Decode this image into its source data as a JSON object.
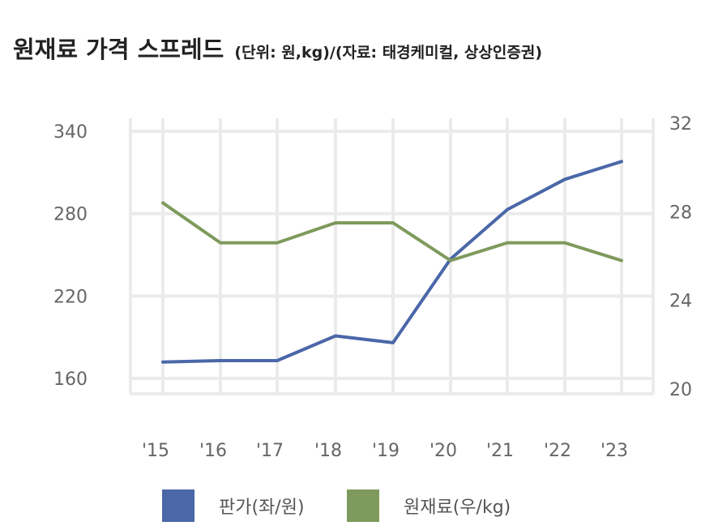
{
  "colors": {
    "price": "#4A67A8",
    "material": "#7E9A5C",
    "grid": "#EBEBEB"
  },
  "chart_data": {
    "type": "line",
    "title": "원재료 가격 스프레드",
    "subtitle": "(단위: 원,kg)/(자료: 태경케미컬, 상상인증권)",
    "categories": [
      "'15",
      "'16",
      "'17",
      "'18",
      "'19",
      "'20",
      "'21",
      "'22",
      "'23"
    ],
    "y_left": {
      "ticks": [
        "340",
        "280",
        "220",
        "160"
      ],
      "range": [
        160,
        340
      ]
    },
    "y_right": {
      "ticks": [
        "32",
        "28",
        "24",
        "20"
      ],
      "range": [
        20,
        32
      ]
    },
    "series": [
      {
        "name": "판가(좌/원)",
        "axis": "left",
        "color": "#4A67A8",
        "values": [
          172,
          173,
          173,
          191,
          186,
          247,
          283,
          305,
          318
        ]
      },
      {
        "name": "원재료(우/kg)",
        "axis": "right",
        "color": "#7E9A5C",
        "values": [
          28.4,
          26.6,
          26.6,
          27.5,
          27.5,
          25.8,
          26.6,
          26.6,
          25.8
        ]
      }
    ],
    "grid": true,
    "legend": "bottom"
  }
}
